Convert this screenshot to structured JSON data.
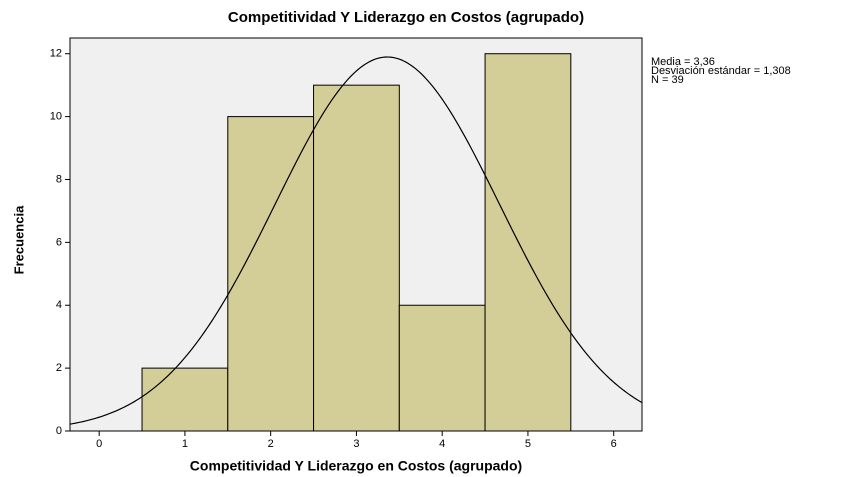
{
  "chart_data": {
    "type": "histogram",
    "title": "Competitividad Y Liderazgo en Costos (agrupado)",
    "x_label": "Competitividad Y Liderazgo en Costos (agrupado)",
    "y_label": "Frecuencia",
    "bins": [
      0.5,
      1.5,
      2.5,
      3.5,
      4.5,
      5.5
    ],
    "counts": [
      2,
      10,
      11,
      4,
      12
    ],
    "color": "#d3cd98",
    "xlim": [
      -0.34,
      6.33
    ],
    "xticks": [
      0,
      1,
      2,
      3,
      4,
      5,
      6
    ],
    "ylim": [
      0,
      12.5
    ],
    "yticks": [
      0,
      2,
      4,
      6,
      8,
      10,
      12
    ],
    "stats": [
      {
        "value": 3.36,
        "label": "Media = 3,36"
      },
      {
        "value": 1.308,
        "label": "Desviación estándar = 1,308"
      },
      {
        "value": 39,
        "label": "N = 39"
      }
    ]
  }
}
